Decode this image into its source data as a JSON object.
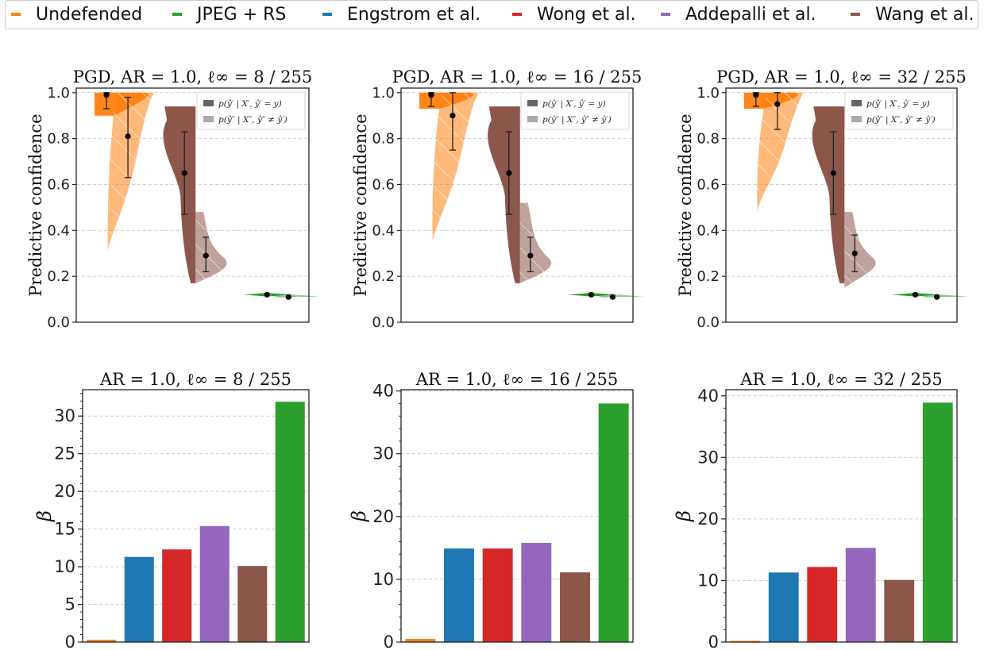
{
  "legend": {
    "items": [
      {
        "label": "Undefended",
        "color": "#ff7f0e"
      },
      {
        "label": "JPEG + RS",
        "color": "#2ca02c"
      },
      {
        "label": "Engstrom et al.",
        "color": "#1f77b4"
      },
      {
        "label": "Wong et al.",
        "color": "#d62728"
      },
      {
        "label": "Addepalli et al.",
        "color": "#9467bd"
      },
      {
        "label": "Wang et al.",
        "color": "#8c564b"
      }
    ]
  },
  "inset_legend": {
    "correct_label": "p(ŷ′ | X′, ŷ′ = y)",
    "wrong_label": "p(ŷ″ | X″, ŷ″ ≠ ŷ′)"
  },
  "chart_data": [
    {
      "type": "violin",
      "title": "PGD, AR = 1.0, ℓ∞ = 8 / 255",
      "ylabel": "Predictive confidence",
      "ylim": [
        0,
        1.02
      ],
      "yticks": [
        "0.0",
        "0.2",
        "0.4",
        "0.6",
        "0.8",
        "1.0"
      ],
      "grid": true,
      "legend_position": "top-right",
      "series": [
        {
          "model": "Undefended",
          "color": "#ff7f0e",
          "correct": {
            "mean": 0.99,
            "err": [
              0.93,
              1.0
            ],
            "range": [
              0.9,
              1.0
            ]
          },
          "wrong": {
            "mean": 0.81,
            "err": [
              0.63,
              0.98
            ],
            "range": [
              0.31,
              1.0
            ]
          }
        },
        {
          "model": "Wang et al.",
          "color": "#8c564b",
          "correct": {
            "mean": 0.65,
            "err": [
              0.47,
              0.83
            ],
            "range": [
              0.17,
              0.94
            ]
          },
          "wrong": {
            "mean": 0.29,
            "err": [
              0.22,
              0.37
            ],
            "range": [
              0.17,
              0.48
            ]
          }
        },
        {
          "model": "JPEG + RS",
          "color": "#2ca02c",
          "correct": {
            "mean": 0.12,
            "err": [
              0.12,
              0.12
            ],
            "range": [
              0.11,
              0.13
            ]
          },
          "wrong": {
            "mean": 0.11,
            "err": [
              0.11,
              0.11
            ],
            "range": [
              0.105,
              0.125
            ]
          }
        }
      ]
    },
    {
      "type": "violin",
      "title": "PGD, AR = 1.0, ℓ∞ = 16 / 255",
      "ylabel": "Predictive confidence",
      "ylim": [
        0,
        1.02
      ],
      "yticks": [
        "0.0",
        "0.2",
        "0.4",
        "0.6",
        "0.8",
        "1.0"
      ],
      "grid": true,
      "legend_position": "top-right",
      "series": [
        {
          "model": "Undefended",
          "color": "#ff7f0e",
          "correct": {
            "mean": 0.99,
            "err": [
              0.94,
              1.0
            ],
            "range": [
              0.93,
              1.0
            ]
          },
          "wrong": {
            "mean": 0.9,
            "err": [
              0.75,
              1.0
            ],
            "range": [
              0.35,
              1.0
            ]
          }
        },
        {
          "model": "Wang et al.",
          "color": "#8c564b",
          "correct": {
            "mean": 0.65,
            "err": [
              0.47,
              0.83
            ],
            "range": [
              0.17,
              0.94
            ]
          },
          "wrong": {
            "mean": 0.29,
            "err": [
              0.22,
              0.37
            ],
            "range": [
              0.17,
              0.52
            ]
          }
        },
        {
          "model": "JPEG + RS",
          "color": "#2ca02c",
          "correct": {
            "mean": 0.12,
            "err": [
              0.12,
              0.12
            ],
            "range": [
              0.11,
              0.13
            ]
          },
          "wrong": {
            "mean": 0.11,
            "err": [
              0.11,
              0.11
            ],
            "range": [
              0.105,
              0.125
            ]
          }
        }
      ]
    },
    {
      "type": "violin",
      "title": "PGD, AR = 1.0, ℓ∞ = 32 / 255",
      "ylabel": "Predictive confidence",
      "ylim": [
        0,
        1.02
      ],
      "yticks": [
        "0.0",
        "0.2",
        "0.4",
        "0.6",
        "0.8",
        "1.0"
      ],
      "grid": true,
      "legend_position": "top-right",
      "series": [
        {
          "model": "Undefended",
          "color": "#ff7f0e",
          "correct": {
            "mean": 0.99,
            "err": [
              0.94,
              1.0
            ],
            "range": [
              0.93,
              1.0
            ]
          },
          "wrong": {
            "mean": 0.95,
            "err": [
              0.84,
              1.0
            ],
            "range": [
              0.48,
              1.0
            ]
          }
        },
        {
          "model": "Wang et al.",
          "color": "#8c564b",
          "correct": {
            "mean": 0.65,
            "err": [
              0.47,
              0.83
            ],
            "range": [
              0.17,
              0.94
            ]
          },
          "wrong": {
            "mean": 0.3,
            "err": [
              0.22,
              0.38
            ],
            "range": [
              0.15,
              0.48
            ]
          }
        },
        {
          "model": "JPEG + RS",
          "color": "#2ca02c",
          "correct": {
            "mean": 0.12,
            "err": [
              0.12,
              0.12
            ],
            "range": [
              0.11,
              0.13
            ]
          },
          "wrong": {
            "mean": 0.11,
            "err": [
              0.11,
              0.11
            ],
            "range": [
              0.105,
              0.125
            ]
          }
        }
      ]
    },
    {
      "type": "bar",
      "title": "AR = 1.0, ℓ∞ = 8 / 255",
      "ylabel": "β",
      "ylim": [
        0,
        33.5
      ],
      "yticks": [
        0,
        5,
        10,
        15,
        20,
        25,
        30
      ],
      "grid": true,
      "categories": [
        "Undefended",
        "Engstrom et al.",
        "Wong et al.",
        "Addepalli et al.",
        "Wang et al.",
        "JPEG + RS"
      ],
      "colors": [
        "#ff7f0e",
        "#1f77b4",
        "#d62728",
        "#9467bd",
        "#8c564b",
        "#2ca02c"
      ],
      "values": [
        0.3,
        11.3,
        12.3,
        15.4,
        10.1,
        31.9
      ]
    },
    {
      "type": "bar",
      "title": "AR = 1.0, ℓ∞ = 16 / 255",
      "ylabel": "β",
      "ylim": [
        0,
        40.2
      ],
      "yticks": [
        0,
        10,
        20,
        30,
        40
      ],
      "grid": true,
      "categories": [
        "Undefended",
        "Engstrom et al.",
        "Wong et al.",
        "Addepalli et al.",
        "Wang et al.",
        "JPEG + RS"
      ],
      "colors": [
        "#ff7f0e",
        "#1f77b4",
        "#d62728",
        "#9467bd",
        "#8c564b",
        "#2ca02c"
      ],
      "values": [
        0.5,
        14.9,
        14.9,
        15.8,
        11.1,
        38.0
      ]
    },
    {
      "type": "bar",
      "title": "AR = 1.0, ℓ∞ = 32 / 255",
      "ylabel": "β",
      "ylim": [
        0,
        41.0
      ],
      "yticks": [
        0,
        10,
        20,
        30,
        40
      ],
      "grid": true,
      "categories": [
        "Undefended",
        "Engstrom et al.",
        "Wong et al.",
        "Addepalli et al.",
        "Wang et al.",
        "JPEG + RS"
      ],
      "colors": [
        "#ff7f0e",
        "#1f77b4",
        "#d62728",
        "#9467bd",
        "#8c564b",
        "#2ca02c"
      ],
      "values": [
        0.2,
        11.3,
        12.2,
        15.3,
        10.1,
        38.9
      ]
    }
  ]
}
